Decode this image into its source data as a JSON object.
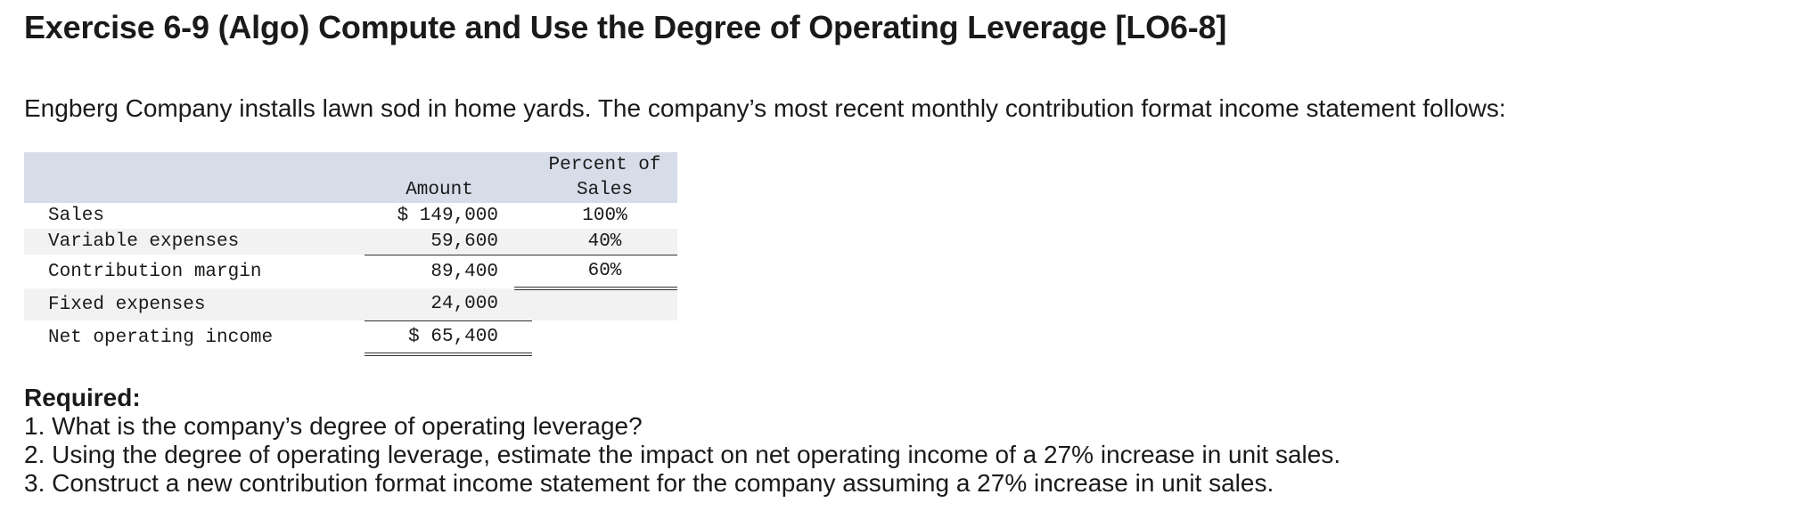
{
  "title": "Exercise 6-9 (Algo) Compute and Use the Degree of Operating Leverage [LO6-8]",
  "intro": "Engberg Company installs lawn sod in home yards. The company’s most recent monthly contribution format income statement follows:",
  "table": {
    "headers": {
      "amount": "Amount",
      "percent_line1": "Percent of",
      "percent_line2": "Sales"
    },
    "rows": [
      {
        "label": "Sales",
        "amount": "$ 149,000",
        "percent": "100%"
      },
      {
        "label": "Variable expenses",
        "amount": "59,600",
        "percent": "40%"
      },
      {
        "label": "Contribution margin",
        "amount": "89,400",
        "percent": "60%"
      },
      {
        "label": "Fixed expenses",
        "amount": "24,000",
        "percent": ""
      },
      {
        "label": "Net operating income",
        "amount": "$ 65,400",
        "percent": ""
      }
    ]
  },
  "required": {
    "heading": "Required:",
    "items": [
      "1. What is the company’s degree of operating leverage?",
      "2. Using the degree of operating leverage, estimate the impact on net operating income of a 27% increase in unit sales.",
      "3. Construct a new contribution format income statement for the company assuming a 27% increase in unit sales."
    ]
  }
}
